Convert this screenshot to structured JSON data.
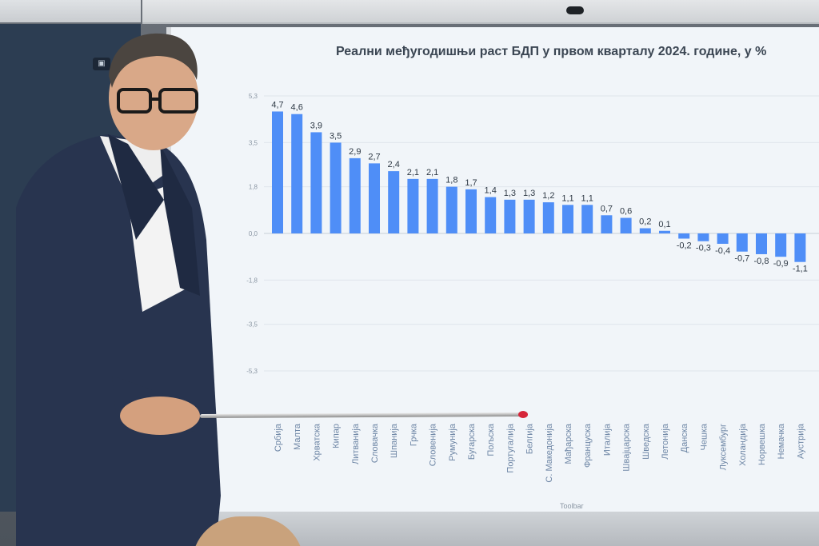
{
  "chart_data": {
    "type": "bar",
    "title": "Реални међугодишњи раст БДП у првом кварталу 2024. године, у %",
    "xlabel": "",
    "ylabel": "",
    "y_ticks": [
      "5,3",
      "3,5",
      "1,8",
      "0,0",
      "-1,8",
      "-3,5",
      "-5,3"
    ],
    "y_tick_values": [
      5.3,
      3.5,
      1.8,
      0.0,
      -1.8,
      -3.5,
      -5.3
    ],
    "ylim": [
      -5.3,
      5.3
    ],
    "grid": true,
    "color": "#4f8ef7",
    "categories": [
      "Србија",
      "Малта",
      "Хрватска",
      "Кипар",
      "Литванија",
      "Словачка",
      "Шпанија",
      "Грчка",
      "Словенија",
      "Румунија",
      "Бугарска",
      "Пољска",
      "Португалија",
      "Белгија",
      "С. Македонија",
      "Мађарска",
      "Француска",
      "Италија",
      "Швајцарска",
      "Шведска",
      "Летонија",
      "Данска",
      "Чешка",
      "Луксембург",
      "Холандија",
      "Норвешка",
      "Немачка",
      "Аустрија"
    ],
    "values": [
      4.7,
      4.6,
      3.9,
      3.5,
      2.9,
      2.7,
      2.4,
      2.1,
      2.1,
      1.8,
      1.7,
      1.4,
      1.3,
      1.3,
      1.2,
      1.1,
      1.1,
      0.7,
      0.6,
      0.2,
      0.1,
      -0.2,
      -0.3,
      -0.4,
      -0.7,
      -0.8,
      -0.9,
      -1.1
    ],
    "labels": [
      "4,7",
      "4,6",
      "3,9",
      "3,5",
      "2,9",
      "2,7",
      "2,4",
      "2,1",
      "2,1",
      "1,8",
      "1,7",
      "1,4",
      "1,3",
      "1,3",
      "1,2",
      "1,1",
      "1,1",
      "0,7",
      "0,6",
      "0,2",
      "0,1",
      "-0,2",
      "-0,3",
      "-0,4",
      "-0,7",
      "-0,8",
      "-0,9",
      "-1,1"
    ]
  },
  "screen": {
    "toolbar_hint": "Toolbar"
  },
  "icons": {
    "camera": "camera-icon"
  }
}
